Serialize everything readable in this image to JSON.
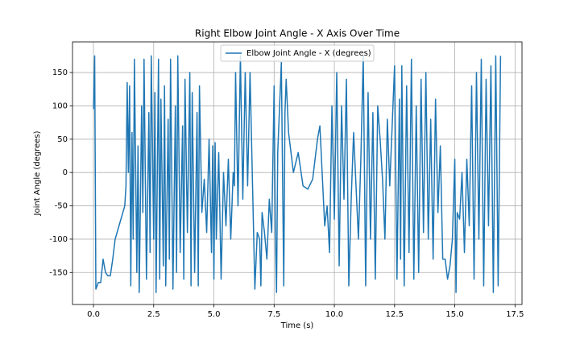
{
  "chart_data": {
    "type": "line",
    "title": "Right Elbow Joint Angle - X Axis Over Time",
    "x_label": "Time (s)",
    "y_label": "Joint Angle (degrees)",
    "x": [
      0,
      0.05,
      0.1,
      0.2,
      0.3,
      0.4,
      0.5,
      0.6,
      0.7,
      0.8,
      0.9,
      1.1,
      1.3,
      1.35,
      1.4,
      1.45,
      1.5,
      1.55,
      1.6,
      1.65,
      1.7,
      1.8,
      1.85,
      1.9,
      2.0,
      2.05,
      2.1,
      2.2,
      2.3,
      2.35,
      2.4,
      2.5,
      2.55,
      2.6,
      2.7,
      2.75,
      2.8,
      2.9,
      2.95,
      3.0,
      3.1,
      3.15,
      3.2,
      3.3,
      3.4,
      3.45,
      3.5,
      3.6,
      3.7,
      3.75,
      3.8,
      3.9,
      4.0,
      4.05,
      4.1,
      4.2,
      4.3,
      4.35,
      4.4,
      4.5,
      4.6,
      4.7,
      4.8,
      4.9,
      4.95,
      5.0,
      5.05,
      5.1,
      5.2,
      5.3,
      5.4,
      5.5,
      5.6,
      5.7,
      5.8,
      5.85,
      5.9,
      6.0,
      6.1,
      6.2,
      6.3,
      6.4,
      6.5,
      6.7,
      6.8,
      6.9,
      6.95,
      7.0,
      7.1,
      7.2,
      7.3,
      7.4,
      7.5,
      7.55,
      7.6,
      7.65,
      7.8,
      7.9,
      7.95,
      8.0,
      8.1,
      8.3,
      8.5,
      8.7,
      8.9,
      9.1,
      9.3,
      9.4,
      9.6,
      9.7,
      9.8,
      9.9,
      10.0,
      10.1,
      10.2,
      10.3,
      10.4,
      10.5,
      10.6,
      10.7,
      10.8,
      10.9,
      11.0,
      11.1,
      11.2,
      11.3,
      11.4,
      11.5,
      11.6,
      11.7,
      11.8,
      11.9,
      12.0,
      12.1,
      12.2,
      12.3,
      12.5,
      12.6,
      12.7,
      12.75,
      12.8,
      12.9,
      13.0,
      13.1,
      13.2,
      13.3,
      13.4,
      13.5,
      13.6,
      13.7,
      13.8,
      13.9,
      14.0,
      14.1,
      14.2,
      14.3,
      14.4,
      14.5,
      14.6,
      14.7,
      14.8,
      14.9,
      15.0,
      15.05,
      15.1,
      15.2,
      15.3,
      15.4,
      15.5,
      15.6,
      15.7,
      15.8,
      15.9,
      16.0,
      16.1,
      16.2,
      16.3,
      16.4,
      16.5,
      16.6,
      16.7,
      16.8,
      16.9
    ],
    "series": [
      {
        "name": "Elbow Joint Angle - X (degrees)",
        "color": "#1f77b4",
        "values": [
          95,
          175,
          -175,
          -165,
          -165,
          -130,
          -150,
          -155,
          -155,
          -130,
          -100,
          -75,
          -50,
          -20,
          135,
          0,
          130,
          -170,
          60,
          -100,
          170,
          -150,
          40,
          -180,
          100,
          -60,
          170,
          -160,
          90,
          -120,
          175,
          -100,
          120,
          -180,
          170,
          -160,
          110,
          -140,
          130,
          -170,
          80,
          -130,
          170,
          -175,
          100,
          -150,
          175,
          -120,
          70,
          -160,
          140,
          -90,
          150,
          -170,
          120,
          -150,
          90,
          -170,
          130,
          -60,
          -10,
          -90,
          50,
          -120,
          40,
          -160,
          45,
          -100,
          30,
          -160,
          0,
          -80,
          20,
          -100,
          0,
          -20,
          150,
          -50,
          175,
          -40,
          150,
          -20,
          150,
          -175,
          -90,
          -100,
          -170,
          -60,
          -90,
          -130,
          -40,
          -90,
          130,
          -90,
          -180,
          30,
          165,
          -170,
          90,
          140,
          60,
          0,
          30,
          -20,
          -25,
          -10,
          50,
          70,
          -80,
          -50,
          -120,
          100,
          -70,
          150,
          -140,
          100,
          -40,
          140,
          -170,
          -40,
          60,
          -20,
          -100,
          20,
          175,
          -170,
          120,
          -100,
          90,
          -160,
          100,
          50,
          -10,
          -100,
          80,
          -20,
          160,
          -160,
          110,
          -130,
          160,
          -170,
          130,
          -120,
          170,
          -160,
          100,
          -150,
          140,
          -90,
          150,
          -100,
          80,
          -130,
          110,
          -60,
          40,
          -130,
          -130,
          -160,
          -140,
          -100,
          20,
          -180,
          -60,
          -70,
          0,
          -120,
          20,
          -80,
          130,
          -160,
          150,
          -100,
          170,
          -170,
          140,
          -80,
          160,
          -180,
          175,
          -170,
          175
        ]
      }
    ],
    "xlim": [
      -0.87,
      17.79
    ],
    "ylim": [
      -198,
      196
    ],
    "xticks": [
      {
        "value": 0,
        "label": "0.0"
      },
      {
        "value": 2.5,
        "label": "2.5"
      },
      {
        "value": 5,
        "label": "5.0"
      },
      {
        "value": 7.5,
        "label": "7.5"
      },
      {
        "value": 10,
        "label": "10.0"
      },
      {
        "value": 12.5,
        "label": "12.5"
      },
      {
        "value": 15,
        "label": "15.0"
      },
      {
        "value": 17.5,
        "label": "17.5"
      }
    ],
    "yticks": [
      -150,
      -100,
      -50,
      0,
      50,
      100,
      150
    ],
    "grid": true,
    "legend": "upper center"
  }
}
